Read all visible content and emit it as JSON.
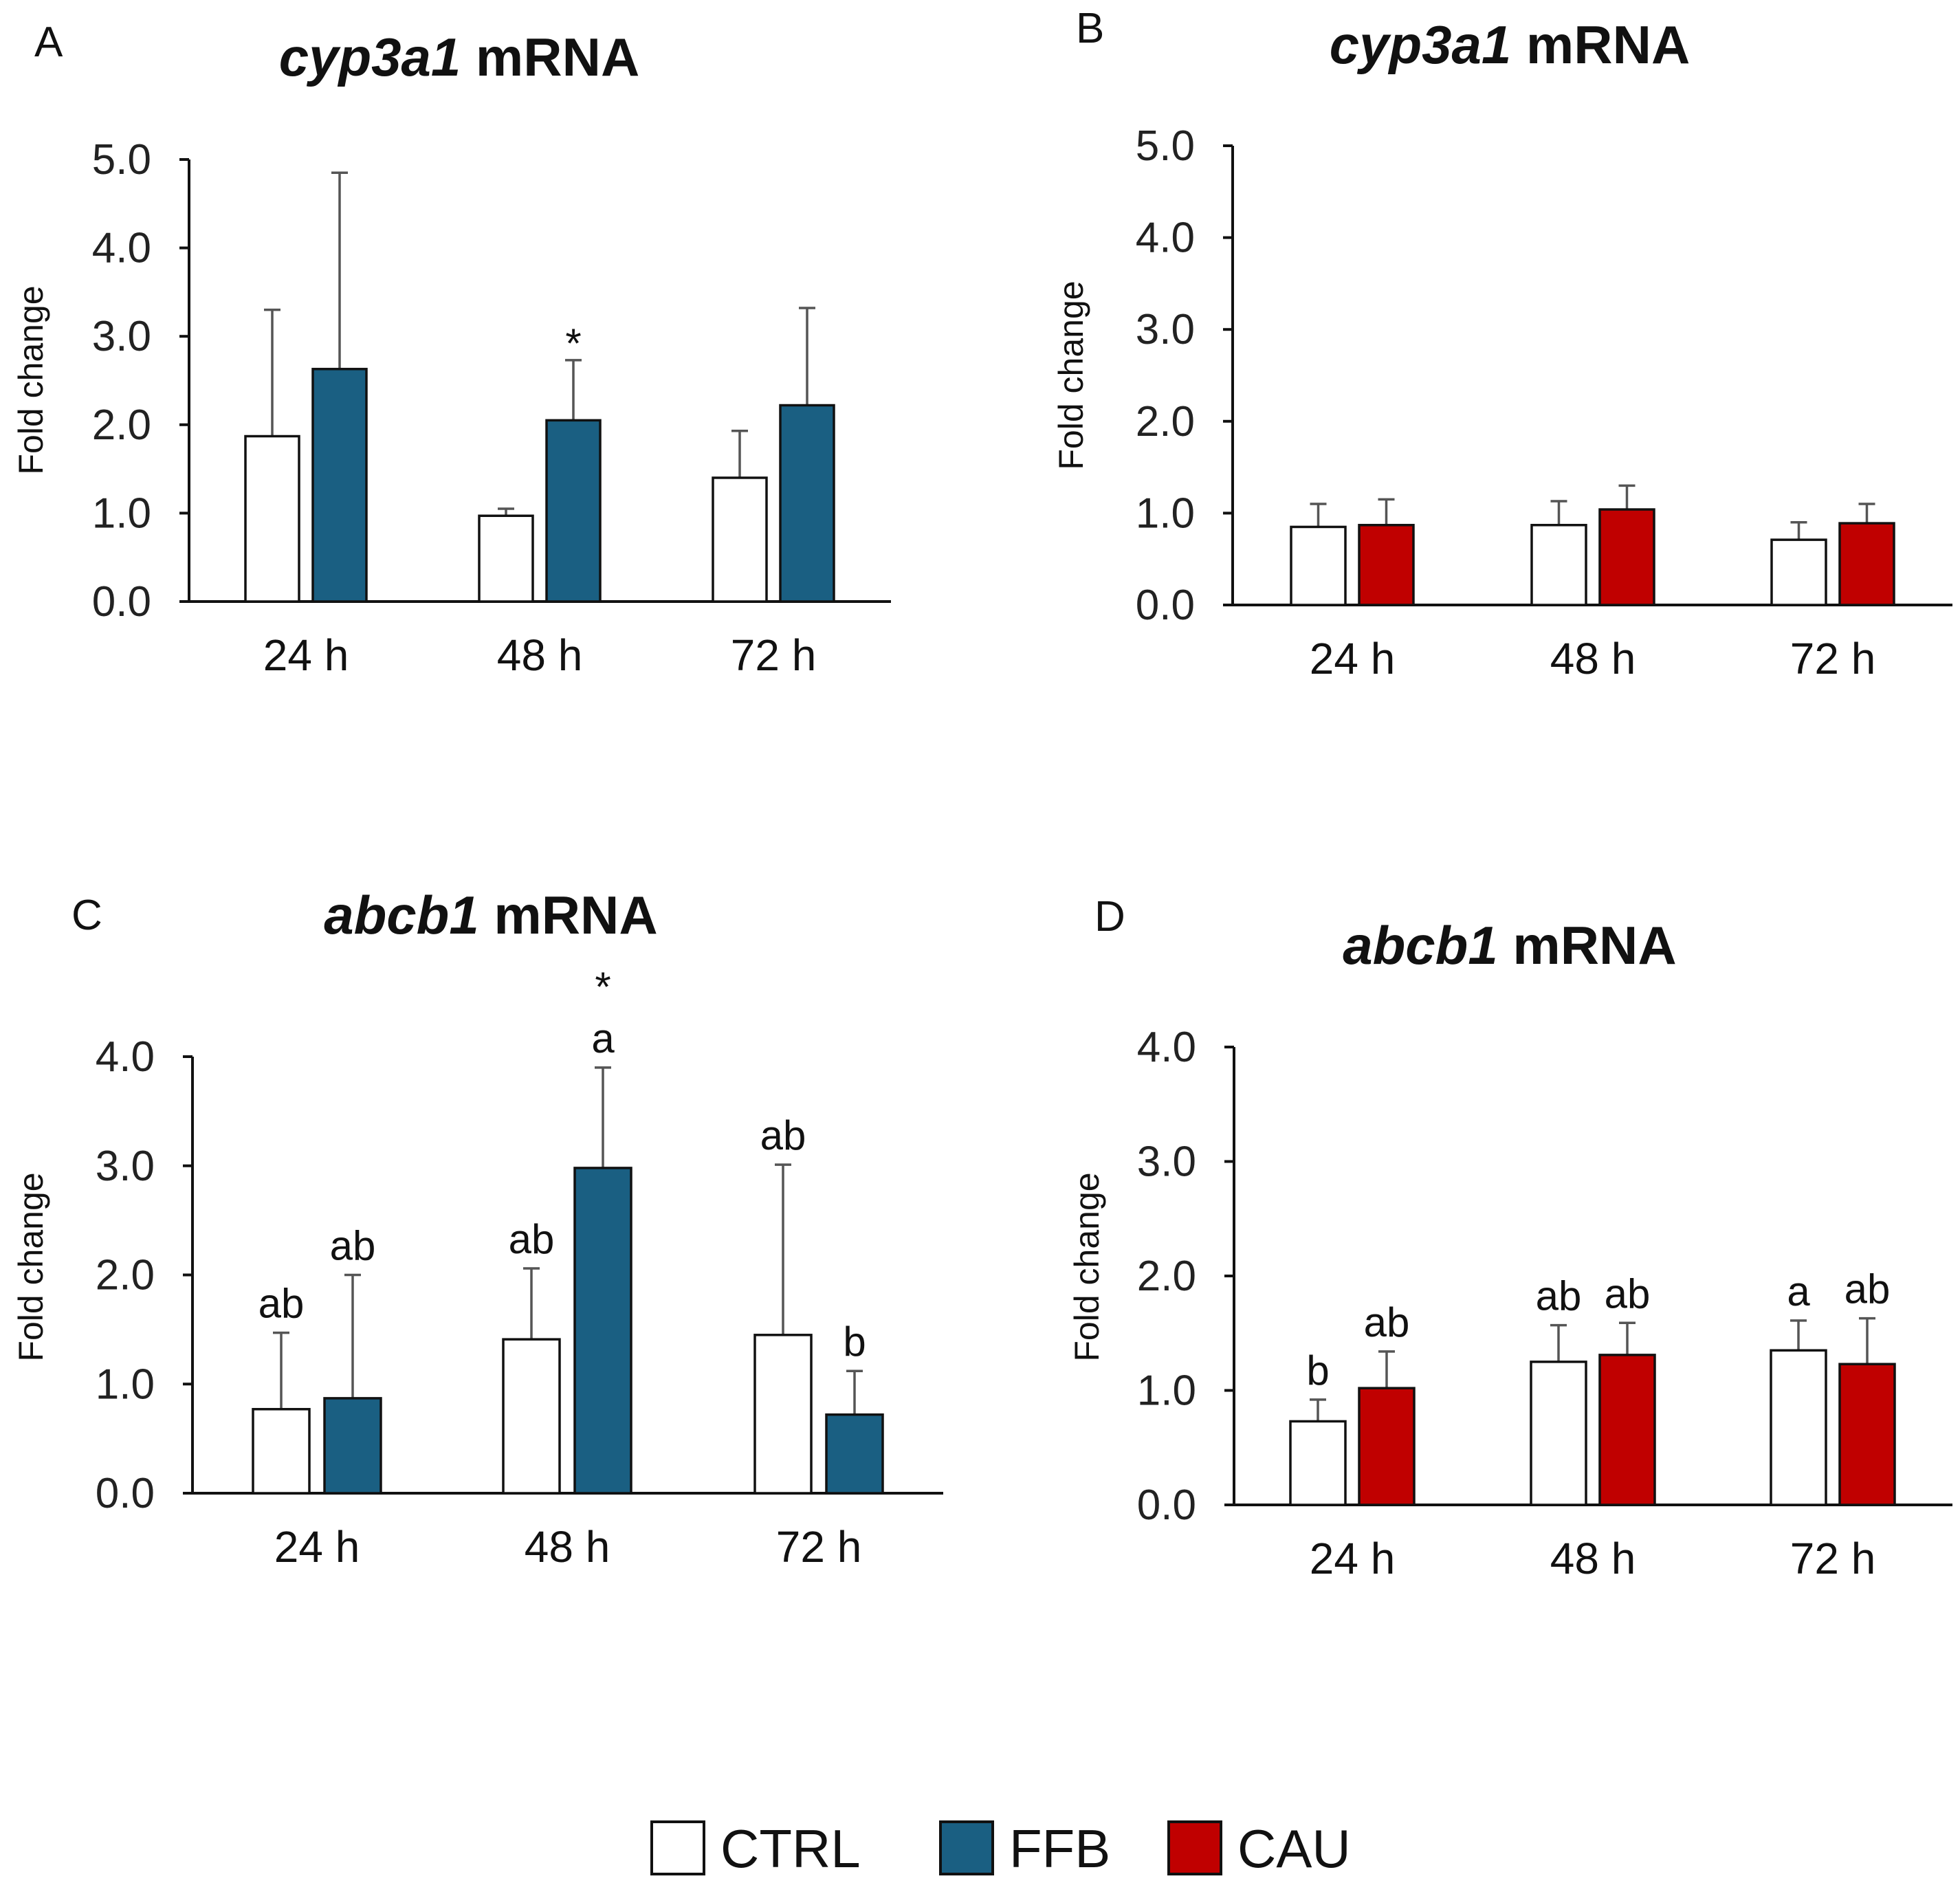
{
  "colors": {
    "CTRL": "#ffffff",
    "FFB": "#1a5f82",
    "CAU": "#c00000",
    "axis": "#111111",
    "error": "#555555"
  },
  "legend": [
    {
      "label": "CTRL",
      "key": "CTRL"
    },
    {
      "label": "FFB",
      "key": "FFB"
    },
    {
      "label": "CAU",
      "key": "CAU"
    }
  ],
  "chart_data": [
    {
      "type": "bar",
      "panel": "A",
      "title_italic": "cyp3a1",
      "title_rest": " mRNA",
      "ylabel": "Fold change",
      "ylim": [
        0,
        5
      ],
      "yticks": [
        "0.0",
        "1.0",
        "2.0",
        "3.0",
        "4.0",
        "5.0"
      ],
      "categories": [
        "24 h",
        "48 h",
        "72 h"
      ],
      "series": [
        {
          "name": "CTRL",
          "values": [
            1.87,
            0.97,
            1.4
          ],
          "error_top": [
            3.3,
            1.05,
            1.93
          ],
          "annotations": [
            [],
            [],
            []
          ]
        },
        {
          "name": "FFB",
          "values": [
            2.63,
            2.05,
            2.22
          ],
          "error_top": [
            4.85,
            2.73,
            3.32
          ],
          "annotations": [
            [],
            [
              "*"
            ],
            []
          ]
        }
      ]
    },
    {
      "type": "bar",
      "panel": "B",
      "title_italic": "cyp3a1",
      "title_rest": " mRNA",
      "ylabel": "Fold change",
      "ylim": [
        0,
        5
      ],
      "yticks": [
        "0.0",
        "1.0",
        "2.0",
        "3.0",
        "4.0",
        "5.0"
      ],
      "categories": [
        "24 h",
        "48 h",
        "72 h"
      ],
      "series": [
        {
          "name": "CTRL",
          "values": [
            0.85,
            0.87,
            0.71
          ],
          "error_top": [
            1.1,
            1.13,
            0.9
          ],
          "annotations": [
            [],
            [],
            []
          ]
        },
        {
          "name": "CAU",
          "values": [
            0.87,
            1.04,
            0.89
          ],
          "error_top": [
            1.15,
            1.3,
            1.1
          ],
          "annotations": [
            [],
            [],
            []
          ]
        }
      ]
    },
    {
      "type": "bar",
      "panel": "C",
      "title_italic": "abcb1",
      "title_rest": " mRNA",
      "ylabel": "Fold change",
      "ylim": [
        0,
        4
      ],
      "yticks": [
        "0.0",
        "1.0",
        "2.0",
        "3.0",
        "4.0"
      ],
      "categories": [
        "24 h",
        "48 h",
        "72 h"
      ],
      "series": [
        {
          "name": "CTRL",
          "values": [
            0.77,
            1.41,
            1.45
          ],
          "error_top": [
            1.47,
            2.06,
            3.01
          ],
          "annotations": [
            [
              "ab"
            ],
            [
              "ab"
            ],
            [
              "ab"
            ]
          ]
        },
        {
          "name": "FFB",
          "values": [
            0.87,
            2.98,
            0.72
          ],
          "error_top": [
            2.0,
            3.9,
            1.12
          ],
          "annotations": [
            [
              "ab"
            ],
            [
              "a",
              "*"
            ],
            [
              "b"
            ]
          ]
        }
      ]
    },
    {
      "type": "bar",
      "panel": "D",
      "title_italic": "abcb1",
      "title_rest": " mRNA",
      "ylabel": "Fold change",
      "ylim": [
        0,
        4
      ],
      "yticks": [
        "0.0",
        "1.0",
        "2.0",
        "3.0",
        "4.0"
      ],
      "categories": [
        "24 h",
        "48 h",
        "72 h"
      ],
      "series": [
        {
          "name": "CTRL",
          "values": [
            0.73,
            1.25,
            1.35
          ],
          "error_top": [
            0.92,
            1.57,
            1.61
          ],
          "annotations": [
            [
              "b"
            ],
            [
              "ab"
            ],
            [
              "a"
            ]
          ]
        },
        {
          "name": "CAU",
          "values": [
            1.02,
            1.31,
            1.23
          ],
          "error_top": [
            1.34,
            1.59,
            1.63
          ],
          "annotations": [
            [
              "ab"
            ],
            [
              "ab"
            ],
            [
              "ab"
            ]
          ]
        }
      ]
    }
  ]
}
